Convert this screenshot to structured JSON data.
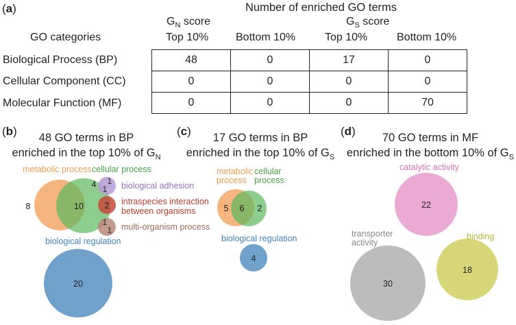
{
  "panel_a": {
    "label_open": "(",
    "label_letter": "a",
    "label_close": ")",
    "title": "Number of enriched GO terms",
    "gn_score": {
      "main": "G",
      "sub": "N",
      "suffix": " score"
    },
    "gs_score": {
      "main": "G",
      "sub": "S",
      "suffix": " score"
    },
    "categories_header": "GO categories",
    "columns": [
      "Top 10%",
      "Bottom 10%",
      "Top 10%",
      "Bottom 10%"
    ],
    "rows": [
      {
        "label": "Biological Process (BP)",
        "values": [
          "48",
          "0",
          "17",
          "0"
        ]
      },
      {
        "label": "Cellular Component (CC)",
        "values": [
          "0",
          "0",
          "0",
          "0"
        ]
      },
      {
        "label": "Molecular Function (MF)",
        "values": [
          "0",
          "0",
          "0",
          "70"
        ]
      }
    ]
  },
  "panel_b": {
    "label_letter": "b",
    "title_line1": "48 GO terms in BP",
    "title_line2_prefix": "enriched in the top 10% of G",
    "title_line2_sub": "N",
    "labels": {
      "metabolic": "metabolic process",
      "cellular": "cellular process",
      "adhesion": "biological adhesion",
      "intraspecies_1": "intraspecies interaction",
      "intraspecies_2": "between organisms",
      "multi": "multi-organism process",
      "regulation": "biological regulation"
    },
    "counts": {
      "metabolic_only": "8",
      "overlap": "10",
      "cellular_only": "4",
      "adhesion_top": "1",
      "adhesion_bottom": "1",
      "intraspecies": "2",
      "multi_top": "1",
      "multi_bottom": "1",
      "regulation": "20"
    }
  },
  "panel_c": {
    "label_letter": "c",
    "title_line1": "17 GO terms in BP",
    "title_line2_prefix": "enriched in the top 10% of G",
    "title_line2_sub": "S",
    "labels": {
      "metabolic_1": "metabolic",
      "metabolic_2": "process",
      "cellular_1": "cellular",
      "cellular_2": "process",
      "regulation": "biological regulation"
    },
    "counts": {
      "metabolic_only": "5",
      "overlap": "6",
      "cellular_only": "2",
      "regulation": "4"
    }
  },
  "panel_d": {
    "label_letter": "d",
    "title_line1": "70 GO terms in MF",
    "title_line2_prefix": "enriched in the bottom 10% of G",
    "title_line2_sub": "S",
    "labels": {
      "catalytic": "catalytic activity",
      "transporter_1": "transporter",
      "transporter_2": "activity",
      "binding": "binding"
    },
    "counts": {
      "catalytic": "22",
      "transporter": "30",
      "binding": "18"
    }
  },
  "colors": {
    "metabolic": "#f5a868",
    "cellular": "#5cb85c",
    "adhesion": "#b79ad6",
    "intraspecies": "#c84a3c",
    "multi": "#b8897a",
    "regulation": "#5f97c5",
    "catalytic": "#e9a1cf",
    "transporter": "#b5b5b5",
    "binding": "#d3d169",
    "text_metabolic": "#f09a50",
    "text_cellular": "#47a447",
    "text_adhesion": "#9b6fc9",
    "text_intraspecies": "#c0392b",
    "text_multi": "#9b6b5a",
    "text_regulation": "#3f82c0",
    "text_catalytic": "#d86fb8",
    "text_transporter": "#888888",
    "text_binding": "#b8b53a"
  }
}
